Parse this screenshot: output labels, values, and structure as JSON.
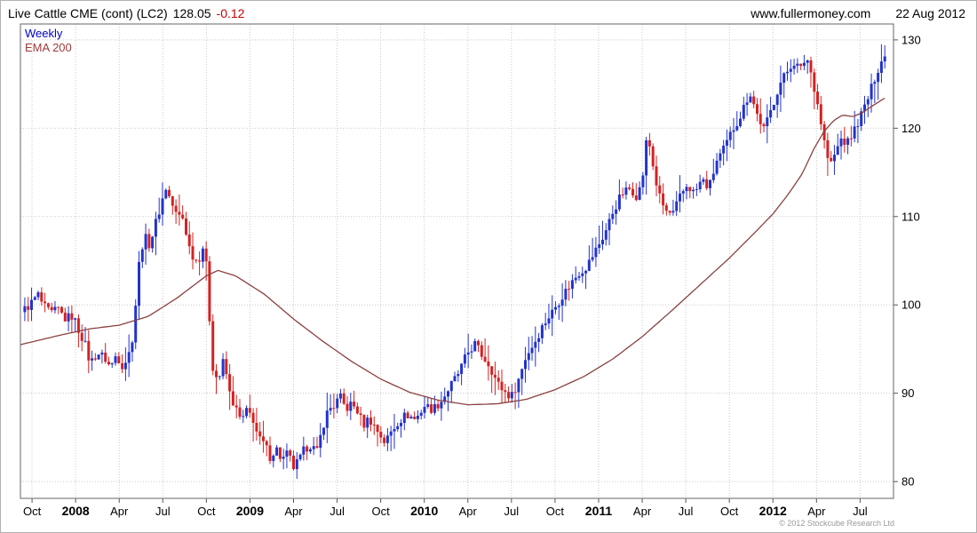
{
  "header": {
    "title": "Live Cattle CME (cont) (LC2)",
    "price": "128.05",
    "change": "-0.12",
    "site": "www.fullermoney.com",
    "date": "22 Aug 2012"
  },
  "legend": {
    "weekly": "Weekly",
    "ema": "EMA 200"
  },
  "footer": {
    "copyright": "© 2012 Stockcube Research Ltd"
  },
  "colors": {
    "up": "#2233cc",
    "down": "#d42222",
    "ema_line": "#8b4040",
    "weekly_label": "#0000cc",
    "ema_label": "#9e3a3a",
    "grid": "#c9c9c9",
    "axis": "#555555",
    "text": "#000000",
    "change_negative": "#cc0000",
    "copyright": "#999999"
  },
  "chart_data": {
    "type": "candlestick",
    "instrument": "Live Cattle CME (cont)",
    "symbol": "LC2",
    "timeframe": "Weekly",
    "overlay": "EMA 200",
    "last_price": 128.05,
    "change": -0.12,
    "as_of": "22 Aug 2012",
    "y_axis_side": "right",
    "grid": true,
    "legend_position": "top-left",
    "ylim": [
      78.1,
      131.8
    ],
    "y_ticks": [
      80,
      90,
      100,
      110,
      120,
      130
    ],
    "x_start": "Oct 2007",
    "x_ticks": [
      {
        "label": "Oct",
        "t": 0,
        "bold": false
      },
      {
        "label": "2008",
        "t": 3,
        "bold": true
      },
      {
        "label": "Apr",
        "t": 6,
        "bold": false
      },
      {
        "label": "Jul",
        "t": 9,
        "bold": false
      },
      {
        "label": "Oct",
        "t": 12,
        "bold": false
      },
      {
        "label": "2009",
        "t": 15,
        "bold": true
      },
      {
        "label": "Apr",
        "t": 18,
        "bold": false
      },
      {
        "label": "Jul",
        "t": 21,
        "bold": false
      },
      {
        "label": "Oct",
        "t": 24,
        "bold": false
      },
      {
        "label": "2010",
        "t": 27,
        "bold": true
      },
      {
        "label": "Apr",
        "t": 30,
        "bold": false
      },
      {
        "label": "Jul",
        "t": 33,
        "bold": false
      },
      {
        "label": "Oct",
        "t": 36,
        "bold": false
      },
      {
        "label": "2011",
        "t": 39,
        "bold": true
      },
      {
        "label": "Apr",
        "t": 42,
        "bold": false
      },
      {
        "label": "Jul",
        "t": 45,
        "bold": false
      },
      {
        "label": "Oct",
        "t": 48,
        "bold": false
      },
      {
        "label": "2012",
        "t": 51,
        "bold": true
      },
      {
        "label": "Apr",
        "t": 54,
        "bold": false
      },
      {
        "label": "Jul",
        "t": 57,
        "bold": false
      }
    ],
    "weeks": 257,
    "t_span": [
      -0.5,
      58.7
    ],
    "price_anchors": [
      [
        -0.5,
        99.5
      ],
      [
        0,
        100.3
      ],
      [
        0.4,
        101.2
      ],
      [
        0.8,
        99.8
      ],
      [
        1.3,
        99.0
      ],
      [
        1.8,
        99.5
      ],
      [
        2.3,
        98.4
      ],
      [
        2.8,
        98.8
      ],
      [
        3.2,
        97.2
      ],
      [
        3.6,
        95.8
      ],
      [
        4.0,
        93.4
      ],
      [
        4.5,
        94.6
      ],
      [
        5.0,
        94.0
      ],
      [
        5.4,
        92.9
      ],
      [
        5.8,
        94.4
      ],
      [
        6.2,
        93.2
      ],
      [
        6.6,
        94.0
      ],
      [
        7.0,
        97.0
      ],
      [
        7.3,
        104.0
      ],
      [
        7.7,
        107.8
      ],
      [
        8.1,
        106.8
      ],
      [
        8.5,
        109.2
      ],
      [
        8.9,
        111.5
      ],
      [
        9.2,
        113.3
      ],
      [
        9.5,
        112.0
      ],
      [
        9.9,
        110.3
      ],
      [
        10.4,
        109.8
      ],
      [
        10.9,
        106.0
      ],
      [
        11.4,
        104.8
      ],
      [
        11.8,
        106.8
      ],
      [
        12.1,
        103.0
      ],
      [
        12.35,
        93.5
      ],
      [
        12.8,
        91.3
      ],
      [
        13.2,
        93.8
      ],
      [
        13.6,
        90.0
      ],
      [
        14.0,
        88.3
      ],
      [
        14.4,
        86.8
      ],
      [
        14.8,
        88.0
      ],
      [
        15.2,
        87.2
      ],
      [
        15.6,
        84.8
      ],
      [
        16.0,
        84.2
      ],
      [
        16.4,
        82.8
      ],
      [
        16.8,
        83.8
      ],
      [
        17.2,
        82.4
      ],
      [
        17.6,
        83.2
      ],
      [
        18.0,
        81.6
      ],
      [
        18.4,
        82.4
      ],
      [
        18.8,
        83.8
      ],
      [
        19.2,
        84.2
      ],
      [
        19.6,
        83.2
      ],
      [
        20.0,
        86.2
      ],
      [
        20.4,
        88.2
      ],
      [
        20.8,
        88.6
      ],
      [
        21.2,
        89.6
      ],
      [
        21.6,
        88.2
      ],
      [
        22.0,
        88.8
      ],
      [
        22.4,
        88.0
      ],
      [
        22.8,
        86.4
      ],
      [
        23.2,
        87.2
      ],
      [
        23.6,
        86.2
      ],
      [
        24.0,
        85.2
      ],
      [
        24.3,
        84.4
      ],
      [
        24.7,
        85.6
      ],
      [
        25.2,
        86.8
      ],
      [
        25.8,
        87.6
      ],
      [
        26.4,
        87.0
      ],
      [
        27.0,
        88.6
      ],
      [
        27.6,
        88.2
      ],
      [
        28.2,
        89.2
      ],
      [
        28.8,
        90.8
      ],
      [
        29.4,
        92.4
      ],
      [
        30.0,
        94.6
      ],
      [
        30.5,
        95.6
      ],
      [
        31.0,
        94.2
      ],
      [
        31.5,
        93.2
      ],
      [
        32.0,
        91.2
      ],
      [
        32.5,
        90.2
      ],
      [
        33.0,
        89.6
      ],
      [
        33.5,
        91.6
      ],
      [
        34.0,
        94.2
      ],
      [
        34.6,
        95.8
      ],
      [
        35.2,
        97.8
      ],
      [
        35.8,
        99.2
      ],
      [
        36.4,
        100.8
      ],
      [
        37.0,
        102.2
      ],
      [
        37.6,
        103.6
      ],
      [
        38.2,
        104.4
      ],
      [
        38.8,
        106.2
      ],
      [
        39.4,
        108.0
      ],
      [
        40.0,
        110.6
      ],
      [
        40.6,
        112.6
      ],
      [
        41.2,
        113.2
      ],
      [
        41.7,
        112.2
      ],
      [
        42.1,
        115.2
      ],
      [
        42.35,
        119.5
      ],
      [
        42.7,
        116.2
      ],
      [
        43.1,
        112.6
      ],
      [
        43.6,
        110.6
      ],
      [
        44.1,
        110.2
      ],
      [
        44.6,
        112.2
      ],
      [
        45.1,
        113.6
      ],
      [
        45.6,
        112.6
      ],
      [
        46.1,
        114.2
      ],
      [
        46.6,
        113.2
      ],
      [
        47.1,
        116.2
      ],
      [
        47.7,
        117.8
      ],
      [
        48.2,
        119.8
      ],
      [
        48.7,
        121.2
      ],
      [
        49.1,
        122.8
      ],
      [
        49.4,
        124.2
      ],
      [
        49.9,
        121.6
      ],
      [
        50.4,
        119.8
      ],
      [
        50.9,
        122.2
      ],
      [
        51.4,
        124.8
      ],
      [
        51.9,
        126.2
      ],
      [
        52.4,
        127.6
      ],
      [
        52.9,
        126.6
      ],
      [
        53.3,
        128.2
      ],
      [
        53.7,
        125.8
      ],
      [
        54.1,
        122.6
      ],
      [
        54.5,
        118.8
      ],
      [
        54.9,
        115.6
      ],
      [
        55.3,
        117.2
      ],
      [
        55.7,
        118.8
      ],
      [
        56.1,
        118.2
      ],
      [
        56.6,
        119.8
      ],
      [
        57.1,
        121.6
      ],
      [
        57.6,
        123.6
      ],
      [
        58.1,
        126.2
      ],
      [
        58.45,
        127.6
      ],
      [
        58.7,
        128.05
      ]
    ],
    "ema_anchors": [
      [
        -0.8,
        95.5
      ],
      [
        2,
        96.6
      ],
      [
        4,
        97.3
      ],
      [
        6,
        97.7
      ],
      [
        8,
        98.7
      ],
      [
        10,
        100.8
      ],
      [
        12,
        103.3
      ],
      [
        12.8,
        103.9
      ],
      [
        14,
        103.3
      ],
      [
        16,
        101.2
      ],
      [
        18,
        98.4
      ],
      [
        20,
        95.9
      ],
      [
        22,
        93.6
      ],
      [
        24,
        91.6
      ],
      [
        26,
        90.1
      ],
      [
        28,
        89.2
      ],
      [
        30,
        88.7
      ],
      [
        32,
        88.8
      ],
      [
        34,
        89.3
      ],
      [
        36,
        90.4
      ],
      [
        38,
        91.9
      ],
      [
        40,
        93.9
      ],
      [
        42,
        96.4
      ],
      [
        44,
        99.3
      ],
      [
        46,
        102.3
      ],
      [
        48,
        105.3
      ],
      [
        50,
        108.6
      ],
      [
        51,
        110.3
      ],
      [
        52,
        112.4
      ],
      [
        53,
        114.8
      ],
      [
        53.8,
        117.6
      ],
      [
        54.5,
        119.6
      ],
      [
        55.2,
        120.9
      ],
      [
        55.8,
        121.5
      ],
      [
        56.5,
        121.3
      ],
      [
        57.2,
        121.8
      ],
      [
        58,
        122.7
      ],
      [
        58.7,
        123.4
      ]
    ]
  }
}
